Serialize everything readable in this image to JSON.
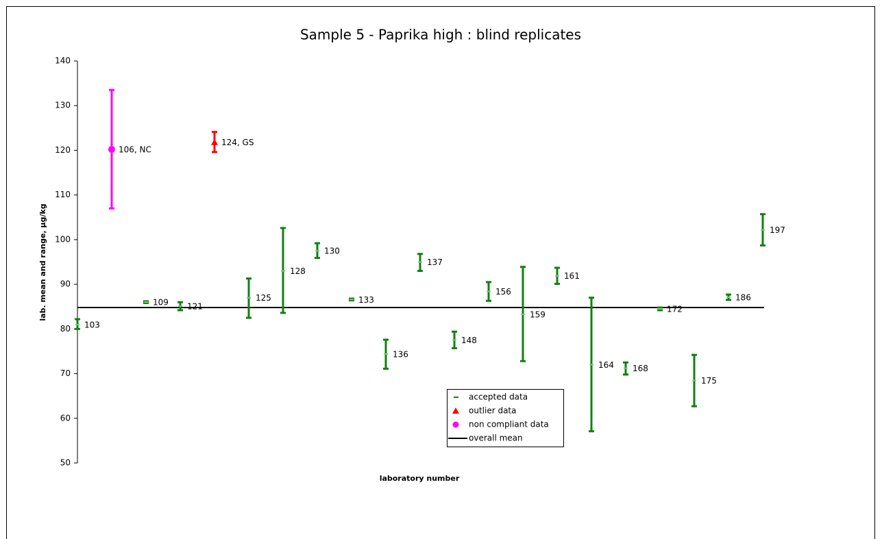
{
  "chart_data": {
    "type": "range",
    "title": "Sample 5 - Paprika high : blind replicates",
    "y_label": "lab. mean and range, µg/kg",
    "x_label": "laboratory number",
    "categories": [
      "103",
      "106, NC",
      "109",
      "121",
      "124, GS",
      "125",
      "128",
      "130",
      "133",
      "136",
      "137",
      "148",
      "156",
      "159",
      "161",
      "164",
      "168",
      "172",
      "175",
      "186",
      "197"
    ],
    "ylim": [
      50,
      140
    ],
    "yticks": [
      50,
      60,
      70,
      80,
      90,
      100,
      110,
      120,
      130,
      140
    ],
    "series": [
      {
        "name": "accepted data",
        "color": "#108010",
        "marker": "dash",
        "values": [
          81,
          null,
          86,
          85.1,
          null,
          87,
          93,
          97.5,
          86.6,
          74.4,
          95,
          77.5,
          88.4,
          83.3,
          91.9,
          72,
          71.2,
          84.5,
          68.5,
          87.1,
          102.2
        ],
        "low": [
          80,
          null,
          85.8,
          84.2,
          null,
          82.5,
          83.6,
          95.9,
          86.4,
          71.1,
          93,
          75.7,
          86.3,
          72.8,
          90.1,
          57.1,
          69.8,
          84.2,
          62.7,
          86.5,
          98.7
        ],
        "high": [
          82.2,
          null,
          86.2,
          86,
          null,
          91.3,
          102.6,
          99.2,
          86.8,
          77.6,
          96.8,
          79.4,
          90.5,
          93.9,
          93.7,
          87,
          72.5,
          84.8,
          74.2,
          87.7,
          105.7
        ]
      },
      {
        "name": "outlier data",
        "color": "#ff0000",
        "marker": "triangle",
        "values": [
          null,
          null,
          null,
          null,
          121.8,
          null,
          null,
          null,
          null,
          null,
          null,
          null,
          null,
          null,
          null,
          null,
          null,
          null,
          null,
          null,
          null
        ],
        "low": [
          null,
          null,
          null,
          null,
          119.6,
          null,
          null,
          null,
          null,
          null,
          null,
          null,
          null,
          null,
          null,
          null,
          null,
          null,
          null,
          null,
          null
        ],
        "high": [
          null,
          null,
          null,
          null,
          124.1,
          null,
          null,
          null,
          null,
          null,
          null,
          null,
          null,
          null,
          null,
          null,
          null,
          null,
          null,
          null,
          null
        ]
      },
      {
        "name": "non compliant data",
        "color": "#ff00ff",
        "marker": "circle",
        "values": [
          null,
          120.2,
          null,
          null,
          null,
          null,
          null,
          null,
          null,
          null,
          null,
          null,
          null,
          null,
          null,
          null,
          null,
          null,
          null,
          null,
          null
        ],
        "low": [
          null,
          107,
          null,
          null,
          null,
          null,
          null,
          null,
          null,
          null,
          null,
          null,
          null,
          null,
          null,
          null,
          null,
          null,
          null,
          null,
          null
        ],
        "high": [
          null,
          133.5,
          null,
          null,
          null,
          null,
          null,
          null,
          null,
          null,
          null,
          null,
          null,
          null,
          null,
          null,
          null,
          null,
          null,
          null,
          null
        ]
      }
    ],
    "mean_line": {
      "name": "overall mean",
      "value": 84.8,
      "color": "#000000"
    }
  }
}
